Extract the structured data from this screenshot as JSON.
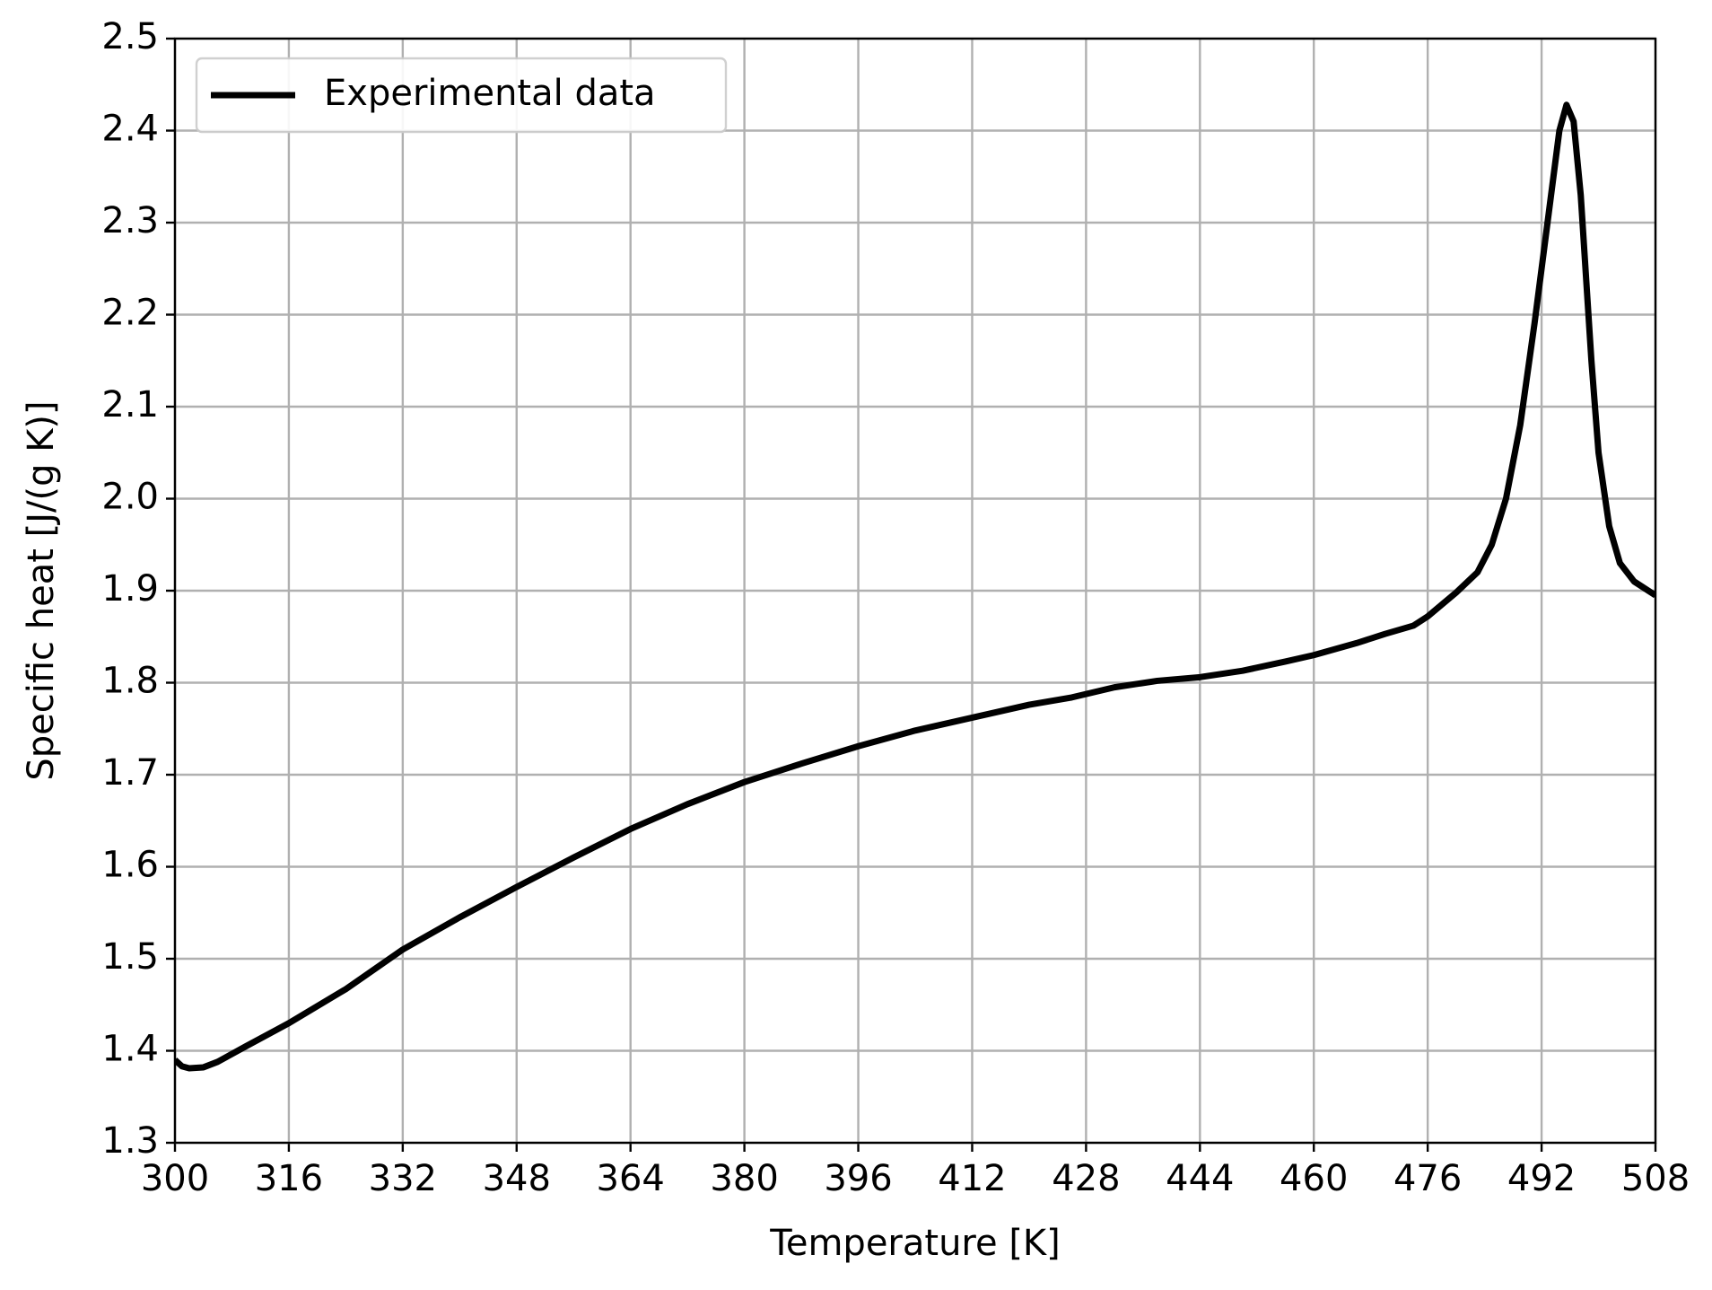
{
  "chart_data": {
    "type": "line",
    "x_label": "Temperature [K]",
    "y_label": "Specific heat [J/(g K)]",
    "x": [
      300,
      301,
      302,
      304,
      306,
      310,
      316,
      324,
      332,
      340,
      348,
      356,
      364,
      372,
      380,
      388,
      396,
      404,
      412,
      420,
      426,
      432,
      438,
      444,
      450,
      456,
      460,
      466,
      470,
      474,
      476,
      480,
      483,
      485,
      487,
      489,
      491,
      493,
      494.5,
      495.5,
      496.5,
      497.5,
      499,
      500,
      501.5,
      503,
      505,
      508
    ],
    "series": [
      {
        "name": "Experimental data",
        "color": "#000000",
        "values": [
          1.39,
          1.383,
          1.381,
          1.382,
          1.388,
          1.405,
          1.43,
          1.467,
          1.51,
          1.545,
          1.578,
          1.61,
          1.641,
          1.668,
          1.692,
          1.712,
          1.731,
          1.748,
          1.762,
          1.776,
          1.784,
          1.795,
          1.802,
          1.806,
          1.813,
          1.823,
          1.83,
          1.843,
          1.853,
          1.862,
          1.872,
          1.898,
          1.92,
          1.95,
          2.0,
          2.08,
          2.19,
          2.31,
          2.4,
          2.428,
          2.41,
          2.33,
          2.15,
          2.05,
          1.97,
          1.93,
          1.91,
          1.895
        ]
      }
    ],
    "xlim": [
      300,
      508
    ],
    "xticks": [
      300,
      316,
      332,
      348,
      364,
      380,
      396,
      412,
      428,
      444,
      460,
      476,
      492,
      508
    ],
    "ylim": [
      1.3,
      2.5
    ],
    "yticks": [
      1.3,
      1.4,
      1.5,
      1.6,
      1.7,
      1.8,
      1.9,
      {
        "value": 2,
        "label": "2.0"
      },
      2.1,
      2.2,
      2.3,
      2.4,
      2.5
    ],
    "grid": true,
    "legend": "upper left"
  }
}
